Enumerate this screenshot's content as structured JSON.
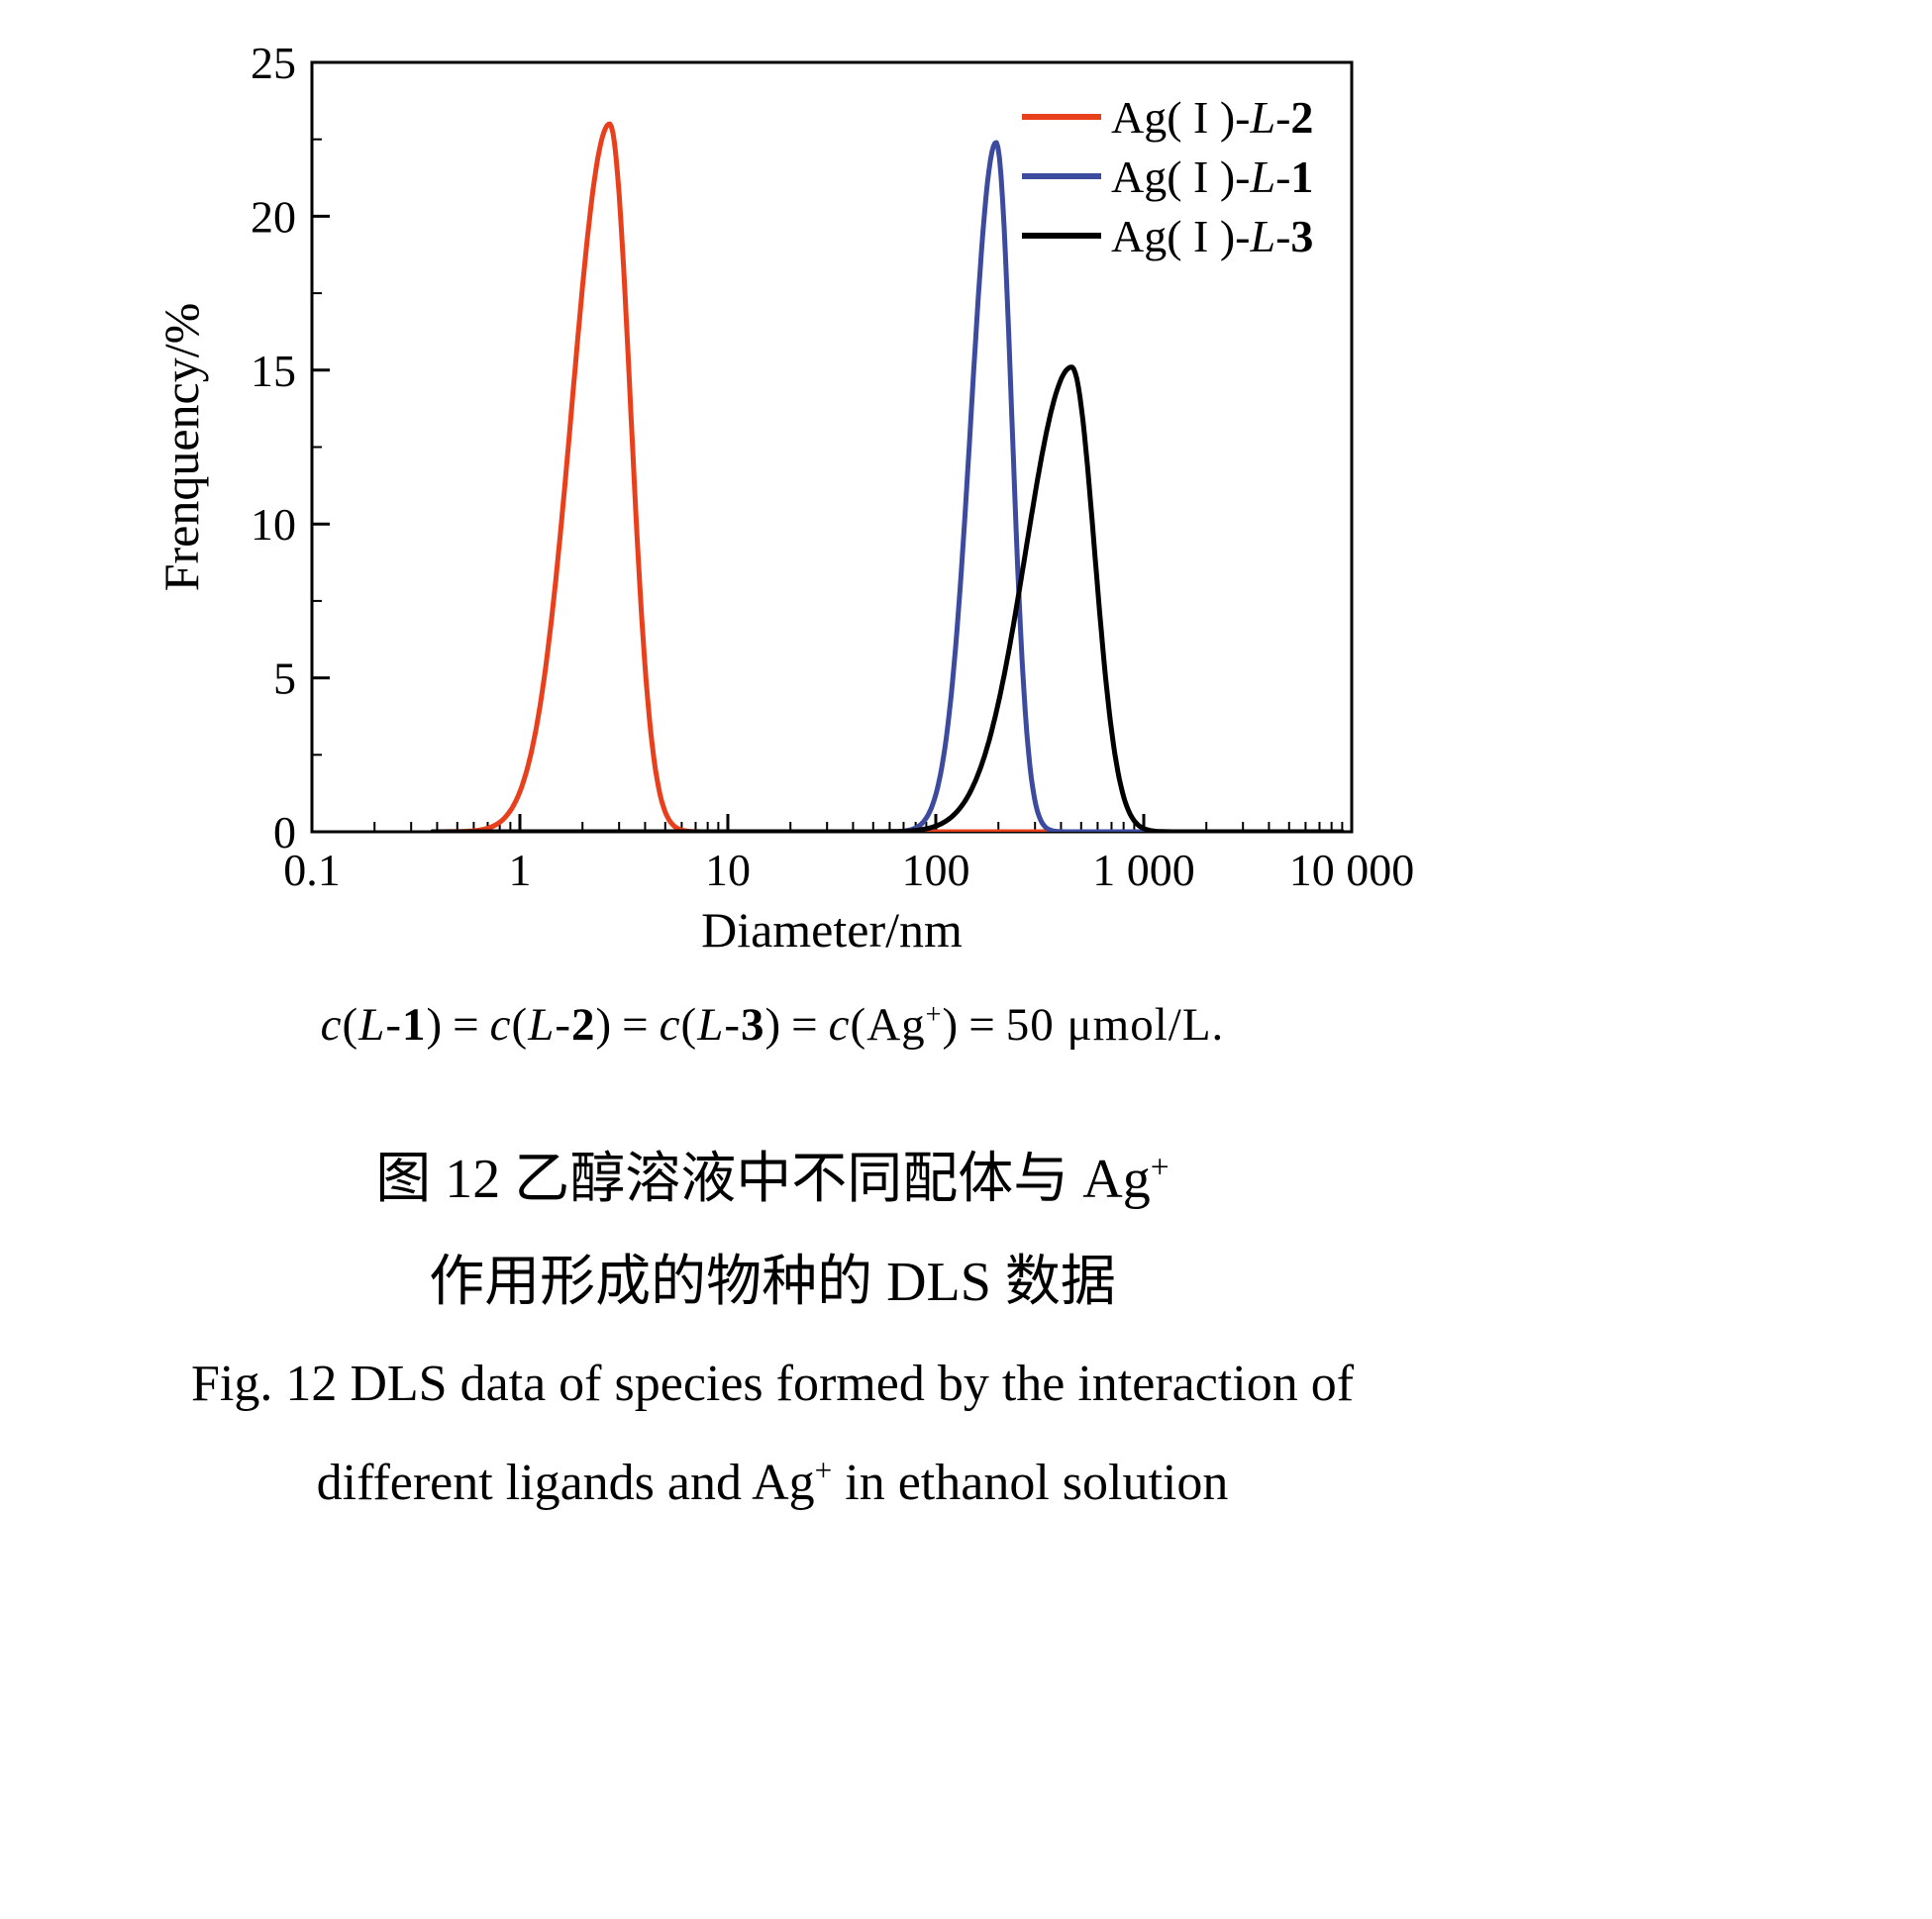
{
  "chart_data": {
    "type": "line",
    "title": "",
    "xlabel": "Diameter/nm",
    "ylabel": "Frenquency/%",
    "x_scale": "log",
    "xlim": [
      0.1,
      10000
    ],
    "ylim": [
      0,
      25
    ],
    "x_ticks": [
      0.1,
      1,
      10,
      100,
      1000,
      10000
    ],
    "x_tick_labels": [
      "0.1",
      "1",
      "10",
      "100",
      "1 000",
      "10 000"
    ],
    "y_ticks": [
      0,
      5,
      10,
      15,
      20,
      25
    ],
    "y_minor_step": 2.5,
    "grid": false,
    "legend_position": "top-right-inside",
    "series": [
      {
        "name": "Ag(I)-L-2",
        "color": "#e8401c",
        "peak_x_nm": 2.7,
        "peak_y_pct": 23.0,
        "sigma_left_decades": 0.18,
        "sigma_right_decades": 0.1,
        "x_start_nm": 0.38,
        "x_end_nm": 9000,
        "label_segments": [
          {
            "t": "n",
            "s": "Ag( I )-"
          },
          {
            "t": "it",
            "s": "L"
          },
          {
            "t": "n",
            "s": "-"
          },
          {
            "t": "b",
            "s": "2"
          }
        ]
      },
      {
        "name": "Ag(I)-L-1",
        "color": "#3c4b9e",
        "peak_x_nm": 195,
        "peak_y_pct": 22.4,
        "sigma_left_decades": 0.12,
        "sigma_right_decades": 0.075,
        "x_start_nm": 0.38,
        "x_end_nm": 9000,
        "label_segments": [
          {
            "t": "n",
            "s": "Ag( I )-"
          },
          {
            "t": "it",
            "s": "L"
          },
          {
            "t": "n",
            "s": "-"
          },
          {
            "t": "b",
            "s": "1"
          }
        ]
      },
      {
        "name": "Ag(I)-L-3",
        "color": "#000000",
        "peak_x_nm": 450,
        "peak_y_pct": 15.1,
        "sigma_left_decades": 0.22,
        "sigma_right_decades": 0.11,
        "x_start_nm": 0.38,
        "x_end_nm": 9000,
        "label_segments": [
          {
            "t": "n",
            "s": "Ag( I )-"
          },
          {
            "t": "it",
            "s": "L"
          },
          {
            "t": "n",
            "s": "-"
          },
          {
            "t": "b",
            "s": "3"
          }
        ]
      }
    ]
  },
  "condition_line": {
    "segments": [
      {
        "t": "it",
        "s": "c"
      },
      {
        "t": "n",
        "s": "("
      },
      {
        "t": "it",
        "s": "L"
      },
      {
        "t": "n",
        "s": "-"
      },
      {
        "t": "b",
        "s": "1"
      },
      {
        "t": "n",
        "s": ")"
      },
      {
        "t": "eq",
        "s": "="
      },
      {
        "t": "it",
        "s": "c"
      },
      {
        "t": "n",
        "s": "("
      },
      {
        "t": "it",
        "s": "L"
      },
      {
        "t": "n",
        "s": "-"
      },
      {
        "t": "b",
        "s": "2"
      },
      {
        "t": "n",
        "s": ")"
      },
      {
        "t": "eq",
        "s": "="
      },
      {
        "t": "it",
        "s": "c"
      },
      {
        "t": "n",
        "s": "("
      },
      {
        "t": "it",
        "s": "L"
      },
      {
        "t": "n",
        "s": "-"
      },
      {
        "t": "b",
        "s": "3"
      },
      {
        "t": "n",
        "s": ")"
      },
      {
        "t": "eq",
        "s": "="
      },
      {
        "t": "it",
        "s": "c"
      },
      {
        "t": "n",
        "s": "(Ag"
      },
      {
        "t": "sup",
        "s": "+"
      },
      {
        "t": "n",
        "s": ")"
      },
      {
        "t": "eq",
        "s": "="
      },
      {
        "t": "n",
        "s": "50 μmol/L."
      }
    ]
  },
  "caption_zh": {
    "line1_segments": [
      {
        "t": "n",
        "s": "图 12  乙醇溶液中不同配体与 Ag"
      },
      {
        "t": "sup",
        "s": "+"
      }
    ],
    "line2_segments": [
      {
        "t": "n",
        "s": "作用形成的物种的 DLS 数据"
      }
    ]
  },
  "caption_en": {
    "line1_segments": [
      {
        "t": "n",
        "s": "Fig. 12  DLS data of species formed by the interaction of"
      }
    ],
    "line2_segments": [
      {
        "t": "n",
        "s": "different ligands and Ag"
      },
      {
        "t": "sup",
        "s": "+"
      },
      {
        "t": "n",
        "s": " in ethanol solution"
      }
    ]
  }
}
